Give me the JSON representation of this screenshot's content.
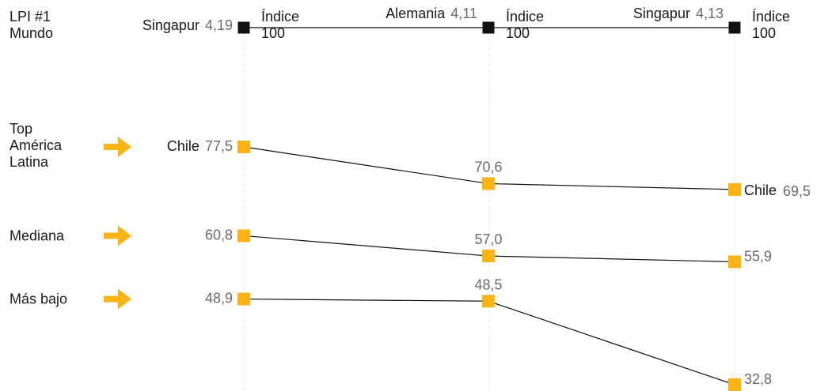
{
  "chart_data": {
    "type": "line",
    "colors": {
      "series": "#fbb316",
      "top_marker": "#111111",
      "line": "#111111",
      "grid": "#cccccc",
      "value_text": "#6b6b6b"
    },
    "columns": 3,
    "lpi_top": {
      "label_lines": [
        "LPI #1",
        "Mundo"
      ],
      "index_lines": [
        "Índice",
        "100"
      ],
      "entries": [
        {
          "country": "Singapur",
          "value": "4,19"
        },
        {
          "country": "Alemania",
          "value": "4,11"
        },
        {
          "country": "Singapur",
          "value": "4,13"
        }
      ]
    },
    "series": [
      {
        "label_lines": [
          "Top",
          "América",
          "Latina"
        ],
        "values": [
          77.5,
          70.6,
          69.5
        ],
        "display": [
          "77,5",
          "70,6",
          "69,5"
        ],
        "countries": [
          "Chile",
          "",
          "Chile"
        ]
      },
      {
        "label_lines": [
          "Mediana"
        ],
        "values": [
          60.8,
          57.0,
          55.9
        ],
        "display": [
          "60,8",
          "57,0",
          "55,9"
        ],
        "countries": [
          "",
          "",
          ""
        ]
      },
      {
        "label_lines": [
          "Más bajo"
        ],
        "values": [
          48.9,
          48.5,
          32.8
        ],
        "display": [
          "48,9",
          "48,5",
          "32,8"
        ],
        "countries": [
          "",
          "",
          ""
        ]
      }
    ],
    "arrow_icon": "right-arrow-icon"
  }
}
